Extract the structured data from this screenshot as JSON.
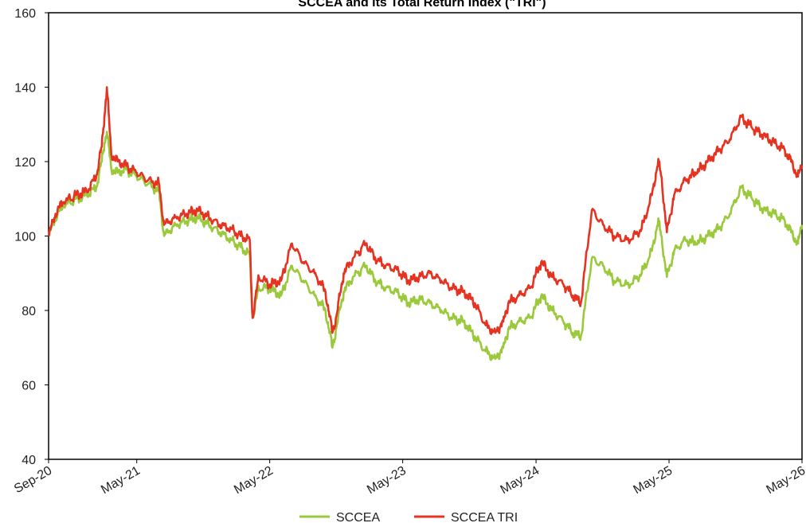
{
  "chart_data": {
    "type": "line",
    "title": "SCCEA and its Total Return Index (\"TRI\")",
    "xlabel": "",
    "ylabel": "",
    "x_ticks": [
      "Sep-20",
      "May-21",
      "May-22",
      "May-23",
      "May-24",
      "May-25",
      "May-26"
    ],
    "x_tick_dates": [
      "2020-09-01",
      "2021-05-01",
      "2022-05-01",
      "2023-05-01",
      "2024-05-01",
      "2025-05-01",
      "2026-05-01"
    ],
    "xlim": [
      "2020-09-01",
      "2026-05-01"
    ],
    "ylim": [
      40,
      160
    ],
    "y_ticks": [
      40,
      60,
      80,
      100,
      120,
      140,
      160
    ],
    "grid": false,
    "legend": "bottom",
    "series": [
      {
        "name": "SCCEA",
        "color": "#9bc93c",
        "x": [
          "2020-09-01",
          "2020-09-20",
          "2020-10-10",
          "2020-11-15",
          "2020-12-15",
          "2021-01-10",
          "2021-01-25",
          "2021-02-01",
          "2021-02-08",
          "2021-02-20",
          "2021-03-10",
          "2021-04-01",
          "2021-05-01",
          "2021-06-01",
          "2021-07-01",
          "2021-07-15",
          "2021-08-15",
          "2021-09-15",
          "2021-10-15",
          "2021-11-15",
          "2021-12-15",
          "2022-01-15",
          "2022-02-10",
          "2022-03-07",
          "2022-03-15",
          "2022-04-01",
          "2022-05-01",
          "2022-06-01",
          "2022-07-01",
          "2022-08-01",
          "2022-09-01",
          "2022-10-01",
          "2022-10-20",
          "2022-11-01",
          "2022-11-20",
          "2022-12-15",
          "2023-01-20",
          "2023-02-15",
          "2023-03-15",
          "2023-04-15",
          "2023-05-15",
          "2023-06-15",
          "2023-07-15",
          "2023-08-15",
          "2023-09-15",
          "2023-10-15",
          "2023-11-15",
          "2023-12-15",
          "2024-01-10",
          "2024-02-01",
          "2024-02-15",
          "2024-03-15",
          "2024-04-15",
          "2024-05-15",
          "2024-06-15",
          "2024-07-15",
          "2024-08-10",
          "2024-09-01",
          "2024-10-01",
          "2024-11-01",
          "2024-12-01",
          "2025-01-15",
          "2025-02-15",
          "2025-03-15",
          "2025-04-01",
          "2025-04-10",
          "2025-04-25",
          "2025-05-15",
          "2025-06-15",
          "2025-07-15",
          "2025-08-15",
          "2025-09-15",
          "2025-10-15",
          "2025-11-15",
          "2025-12-15",
          "2026-01-15",
          "2026-02-15",
          "2026-03-15",
          "2026-04-01",
          "2026-04-20",
          "2026-05-01"
        ],
        "y": [
          100,
          105,
          108,
          110,
          111,
          113,
          120,
          125,
          128,
          118,
          117,
          118,
          116,
          114,
          112,
          100,
          103,
          104,
          105,
          103,
          101,
          99,
          97,
          95,
          78,
          86,
          86,
          84,
          92,
          88,
          84,
          80,
          70,
          76,
          85,
          89,
          92,
          88,
          86,
          85,
          82,
          83,
          82,
          80,
          78,
          77,
          73,
          69,
          67,
          70,
          75,
          77,
          78,
          84,
          80,
          77,
          74,
          73,
          94,
          92,
          88,
          87,
          90,
          96,
          104,
          100,
          89,
          96,
          99,
          98,
          100,
          102,
          106,
          113,
          110,
          107,
          106,
          104,
          101,
          98,
          103
        ]
      },
      {
        "name": "SCCEA TRI",
        "color": "#e53322",
        "x": [
          "2020-09-01",
          "2020-09-20",
          "2020-10-10",
          "2020-11-15",
          "2020-12-15",
          "2021-01-10",
          "2021-01-25",
          "2021-02-01",
          "2021-02-08",
          "2021-02-20",
          "2021-03-10",
          "2021-04-01",
          "2021-05-01",
          "2021-06-01",
          "2021-07-01",
          "2021-07-15",
          "2021-08-15",
          "2021-09-15",
          "2021-10-15",
          "2021-11-15",
          "2021-12-15",
          "2022-01-15",
          "2022-02-10",
          "2022-03-07",
          "2022-03-15",
          "2022-04-01",
          "2022-05-01",
          "2022-06-01",
          "2022-07-01",
          "2022-08-01",
          "2022-09-01",
          "2022-10-01",
          "2022-10-20",
          "2022-11-01",
          "2022-11-20",
          "2022-12-15",
          "2023-01-20",
          "2023-02-15",
          "2023-03-15",
          "2023-04-15",
          "2023-05-15",
          "2023-06-15",
          "2023-07-15",
          "2023-08-15",
          "2023-09-15",
          "2023-10-15",
          "2023-11-15",
          "2023-12-15",
          "2024-01-10",
          "2024-02-01",
          "2024-02-15",
          "2024-03-15",
          "2024-04-15",
          "2024-05-15",
          "2024-06-15",
          "2024-07-15",
          "2024-08-10",
          "2024-09-01",
          "2024-10-01",
          "2024-11-01",
          "2024-12-01",
          "2025-01-15",
          "2025-02-15",
          "2025-03-15",
          "2025-04-01",
          "2025-04-10",
          "2025-04-25",
          "2025-05-15",
          "2025-06-15",
          "2025-07-15",
          "2025-08-15",
          "2025-09-15",
          "2025-10-15",
          "2025-11-15",
          "2025-12-15",
          "2026-01-15",
          "2026-02-15",
          "2026-03-15",
          "2026-04-01",
          "2026-04-20",
          "2026-05-01"
        ],
        "y": [
          100,
          106,
          109,
          111,
          112,
          116,
          124,
          132,
          140,
          122,
          120,
          119,
          117,
          115,
          114,
          103,
          105,
          106,
          107,
          105,
          103,
          102,
          100,
          99,
          78,
          89,
          87,
          88,
          98,
          93,
          90,
          85,
          74,
          79,
          90,
          94,
          98,
          94,
          92,
          91,
          88,
          89,
          90,
          88,
          86,
          85,
          82,
          76,
          74,
          77,
          82,
          84,
          86,
          93,
          89,
          87,
          84,
          82,
          107,
          103,
          100,
          99,
          102,
          111,
          120,
          116,
          101,
          111,
          115,
          117,
          120,
          123,
          126,
          132,
          129,
          127,
          125,
          123,
          120,
          116,
          119
        ]
      }
    ]
  }
}
